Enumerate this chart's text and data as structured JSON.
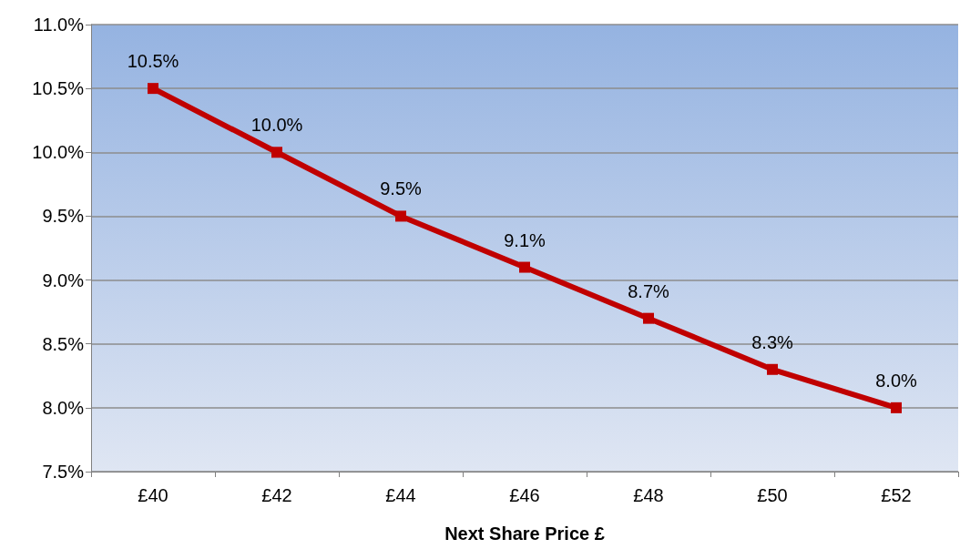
{
  "chart_data": {
    "type": "line",
    "xlabel": "Next Share Price £",
    "categories": [
      "£40",
      "£42",
      "£44",
      "£46",
      "£48",
      "£50",
      "£52"
    ],
    "series": [
      {
        "color": "#c00000",
        "values": [
          10.5,
          10.0,
          9.5,
          9.1,
          8.7,
          8.3,
          8.0
        ],
        "value_labels": [
          "10.5%",
          "10.0%",
          "9.5%",
          "9.1%",
          "8.7%",
          "8.3%",
          "8.0%"
        ]
      }
    ],
    "ylim": [
      7.5,
      11.0
    ],
    "yticks": [
      {
        "value": 7.5,
        "label": "7.5%"
      },
      {
        "value": 8.0,
        "label": "8.0%"
      },
      {
        "value": 8.5,
        "label": "8.5%"
      },
      {
        "value": 9.0,
        "label": "9.0%"
      },
      {
        "value": 9.5,
        "label": "9.5%"
      },
      {
        "value": 10.0,
        "label": "10.0%"
      },
      {
        "value": 10.5,
        "label": "10.5%"
      },
      {
        "value": 11.0,
        "label": "11.0%"
      }
    ],
    "grid": "y",
    "marker": "square",
    "line_style": "solid"
  }
}
